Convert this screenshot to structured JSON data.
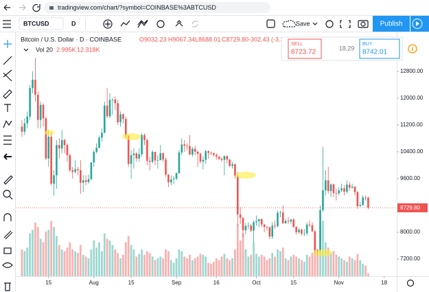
{
  "browser": {
    "url": "tradingview.com/chart/?symbol=COINBASE%3ABTCUSD"
  },
  "toolbar": {
    "symbol": "BTCUSD",
    "interval": "D",
    "save": "Save",
    "publish": "Publish"
  },
  "legend": {
    "title": "Bitcoin / U.S. Dollar · D · COINBASE",
    "open": "O9032.23",
    "high": "H9067.34",
    "low": "L8688.01",
    "close": "C8729.80",
    "change": "-302.43 (-3.35%)"
  },
  "volume_legend": {
    "label": "Vol 20",
    "value": "2.995K",
    "ma": "12.318K"
  },
  "trade": {
    "sell": "SELL",
    "sell_price": "8723.72",
    "spread": "18.29",
    "buy": "BUY",
    "buy_price": "8742.01"
  },
  "chart": {
    "type": "candlestick",
    "up_color": "#26a69a",
    "down_color": "#ef5350",
    "ylim": [
      6690,
      13965
    ],
    "yticks": [
      {
        "value": 12800,
        "label": "12800.00"
      },
      {
        "value": 12000,
        "label": "12000.00"
      },
      {
        "value": 11200,
        "label": "11200.00"
      },
      {
        "value": 10400,
        "label": "10400.00"
      },
      {
        "value": 9600,
        "label": "9600.00"
      },
      {
        "value": 8000,
        "label": "8000.00"
      },
      {
        "value": 7200,
        "label": "7200.00"
      }
    ],
    "xticks": [
      {
        "value": 10,
        "label": "15"
      },
      {
        "value": 27,
        "label": "Aug"
      },
      {
        "value": 41,
        "label": "15"
      },
      {
        "value": 58,
        "label": "Sep"
      },
      {
        "value": 73,
        "label": "16"
      },
      {
        "value": 88,
        "label": "Oct"
      },
      {
        "value": 102,
        "label": "15"
      },
      {
        "value": 119,
        "label": "Nov"
      },
      {
        "value": 136,
        "label": "18"
      }
    ],
    "last_price_label": "8729.80",
    "candles": [
      [
        11150,
        11350,
        10850,
        11000
      ],
      [
        11000,
        11400,
        10900,
        11250
      ],
      [
        11250,
        11600,
        11100,
        11450
      ],
      [
        11450,
        12400,
        11350,
        12300
      ],
      [
        12300,
        12800,
        12150,
        12550
      ],
      [
        12550,
        13200,
        11900,
        12100
      ],
      [
        12100,
        12200,
        11100,
        11350
      ],
      [
        11350,
        11900,
        11100,
        11800
      ],
      [
        11800,
        11850,
        11150,
        11400
      ],
      [
        11400,
        11450,
        10150,
        10200
      ],
      [
        10200,
        11050,
        9950,
        10850
      ],
      [
        10850,
        11000,
        9400,
        9450
      ],
      [
        9450,
        9850,
        9100,
        9700
      ],
      [
        9700,
        10750,
        9300,
        10600
      ],
      [
        10600,
        10800,
        10200,
        10500
      ],
      [
        10500,
        11050,
        10350,
        10750
      ],
      [
        10750,
        10800,
        10350,
        10600
      ],
      [
        10600,
        10650,
        10100,
        10300
      ],
      [
        10300,
        10350,
        9800,
        9850
      ],
      [
        9850,
        9950,
        9600,
        9800
      ],
      [
        9800,
        10150,
        9750,
        9880
      ],
      [
        9880,
        9950,
        9700,
        9850
      ],
      [
        9850,
        10150,
        9150,
        9480
      ],
      [
        9480,
        9700,
        9200,
        9550
      ],
      [
        9550,
        9700,
        9400,
        9500
      ],
      [
        9500,
        9720,
        9450,
        9580
      ],
      [
        9580,
        10100,
        9550,
        10080
      ],
      [
        10080,
        10450,
        9950,
        10400
      ],
      [
        10400,
        10650,
        10350,
        10520
      ],
      [
        10520,
        10880,
        10500,
        10820
      ],
      [
        10820,
        11100,
        10700,
        10970
      ],
      [
        10970,
        11900,
        10950,
        11780
      ],
      [
        11780,
        12300,
        11400,
        11460
      ],
      [
        11460,
        12150,
        11400,
        11950
      ],
      [
        11950,
        12000,
        11500,
        11960
      ],
      [
        11960,
        12050,
        11650,
        11850
      ],
      [
        11850,
        11950,
        11200,
        11280
      ],
      [
        11280,
        11600,
        11150,
        11520
      ],
      [
        11520,
        11550,
        11250,
        11380
      ],
      [
        11380,
        11450,
        10800,
        10880
      ],
      [
        10880,
        10900,
        9950,
        10040
      ],
      [
        10040,
        10450,
        9600,
        10300
      ],
      [
        10300,
        10500,
        9900,
        10350
      ],
      [
        10350,
        10400,
        10100,
        10200
      ],
      [
        10200,
        10500,
        10100,
        10330
      ],
      [
        10330,
        10950,
        10250,
        10900
      ],
      [
        10900,
        10950,
        10600,
        10750
      ],
      [
        10750,
        10800,
        10000,
        10130
      ],
      [
        10130,
        10250,
        9850,
        10100
      ],
      [
        10100,
        10450,
        10050,
        10400
      ],
      [
        10400,
        10400,
        10000,
        10140
      ],
      [
        10140,
        10300,
        9900,
        10150
      ],
      [
        10150,
        10600,
        10150,
        10360
      ],
      [
        10360,
        10380,
        10100,
        10170
      ],
      [
        10170,
        10230,
        9650,
        9720
      ],
      [
        9720,
        9730,
        9350,
        9490
      ],
      [
        9490,
        9700,
        9400,
        9580
      ],
      [
        9580,
        9680,
        9450,
        9600
      ],
      [
        9600,
        9800,
        9550,
        9760
      ],
      [
        9760,
        10450,
        9750,
        10380
      ],
      [
        10380,
        10800,
        10300,
        10620
      ],
      [
        10620,
        10750,
        10400,
        10580
      ],
      [
        10580,
        10650,
        10450,
        10570
      ],
      [
        10570,
        10900,
        10300,
        10320
      ],
      [
        10320,
        10550,
        10250,
        10490
      ],
      [
        10490,
        10580,
        10300,
        10400
      ],
      [
        10400,
        10450,
        9950,
        10340
      ],
      [
        10340,
        10380,
        10050,
        10110
      ],
      [
        10110,
        10270,
        9880,
        10160
      ],
      [
        10160,
        10450,
        10050,
        10420
      ],
      [
        10420,
        10440,
        10200,
        10370
      ],
      [
        10370,
        10410,
        10300,
        10360
      ],
      [
        10360,
        10380,
        10250,
        10310
      ],
      [
        10310,
        10360,
        10170,
        10260
      ],
      [
        10260,
        10270,
        10150,
        10190
      ],
      [
        10190,
        10250,
        10100,
        10160
      ],
      [
        10160,
        10300,
        9700,
        10270
      ],
      [
        10270,
        10300,
        10050,
        10170
      ],
      [
        10170,
        10180,
        9950,
        9980
      ],
      [
        9980,
        10100,
        9900,
        10030
      ],
      [
        10030,
        10050,
        9600,
        9690
      ],
      [
        9690,
        9800,
        8200,
        8530
      ],
      [
        8530,
        8750,
        8250,
        8430
      ],
      [
        8430,
        8450,
        7850,
        8060
      ],
      [
        8060,
        8280,
        7950,
        8190
      ],
      [
        8190,
        8300,
        8100,
        8200
      ],
      [
        8200,
        8250,
        8000,
        8050
      ],
      [
        8050,
        8350,
        7700,
        8300
      ],
      [
        8300,
        8500,
        8200,
        8330
      ],
      [
        8330,
        8400,
        8150,
        8390
      ],
      [
        8390,
        8420,
        8150,
        8230
      ],
      [
        8230,
        8250,
        8000,
        8160
      ],
      [
        8160,
        8190,
        8050,
        8150
      ],
      [
        8150,
        8170,
        7800,
        7870
      ],
      [
        7870,
        8300,
        7800,
        8200
      ],
      [
        8200,
        8350,
        8100,
        8180
      ],
      [
        8180,
        8650,
        8150,
        8580
      ],
      [
        8580,
        8650,
        8450,
        8590
      ],
      [
        8590,
        8800,
        8250,
        8270
      ],
      [
        8270,
        8400,
        8250,
        8340
      ],
      [
        8340,
        8450,
        8250,
        8320
      ],
      [
        8320,
        8400,
        8250,
        8380
      ],
      [
        8380,
        8420,
        8130,
        8160
      ],
      [
        8160,
        8180,
        7930,
        8000
      ],
      [
        8000,
        8120,
        7950,
        8080
      ],
      [
        8080,
        8100,
        7900,
        7960
      ],
      [
        7960,
        8100,
        7880,
        7970
      ],
      [
        7970,
        8300,
        7900,
        8230
      ],
      [
        8230,
        8350,
        8150,
        8210
      ],
      [
        8210,
        8300,
        8000,
        8030
      ],
      [
        8030,
        8050,
        7350,
        7470
      ],
      [
        7470,
        7500,
        7300,
        7450
      ],
      [
        7450,
        8800,
        7400,
        8660
      ],
      [
        8660,
        10550,
        8600,
        9250
      ],
      [
        9250,
        9850,
        9100,
        9550
      ],
      [
        9550,
        9950,
        9150,
        9230
      ],
      [
        9230,
        9450,
        9050,
        9430
      ],
      [
        9430,
        9450,
        9050,
        9170
      ],
      [
        9170,
        9300,
        8950,
        9160
      ],
      [
        9160,
        9350,
        9100,
        9250
      ],
      [
        9250,
        9450,
        9200,
        9310
      ],
      [
        9310,
        9400,
        9100,
        9210
      ],
      [
        9210,
        9550,
        9150,
        9420
      ],
      [
        9420,
        9500,
        9250,
        9330
      ],
      [
        9330,
        9450,
        9300,
        9360
      ],
      [
        9360,
        9380,
        9100,
        9200
      ],
      [
        9200,
        9230,
        8700,
        8780
      ],
      [
        8780,
        8900,
        8750,
        8810
      ],
      [
        8810,
        9100,
        8800,
        9040
      ],
      [
        9040,
        9100,
        8950,
        9032.23
      ],
      [
        9032.23,
        9067.34,
        8688.01,
        8729.8
      ]
    ],
    "volume": [
      30,
      28,
      32,
      48,
      52,
      60,
      55,
      42,
      38,
      50,
      52,
      62,
      55,
      45,
      35,
      30,
      28,
      32,
      38,
      30,
      28,
      26,
      35,
      24,
      22,
      20,
      30,
      40,
      32,
      38,
      28,
      48,
      42,
      40,
      35,
      30,
      26,
      20,
      24,
      38,
      45,
      35,
      30,
      22,
      25,
      30,
      24,
      28,
      26,
      22,
      18,
      20,
      22,
      20,
      30,
      28,
      18,
      15,
      20,
      30,
      28,
      22,
      20,
      24,
      18,
      20,
      22,
      25,
      24,
      22,
      15,
      14,
      16,
      20,
      18,
      22,
      25,
      20,
      18,
      20,
      30,
      58,
      40,
      48,
      30,
      22,
      24,
      38,
      25,
      22,
      24,
      22,
      18,
      20,
      26,
      22,
      30,
      28,
      32,
      20,
      18,
      22,
      24,
      22,
      20,
      18,
      16,
      24,
      22,
      26,
      40,
      30,
      55,
      62,
      38,
      32,
      26,
      28,
      24,
      22,
      20,
      18,
      16,
      22,
      20,
      18,
      25,
      18,
      14,
      12,
      2.995
    ]
  }
}
